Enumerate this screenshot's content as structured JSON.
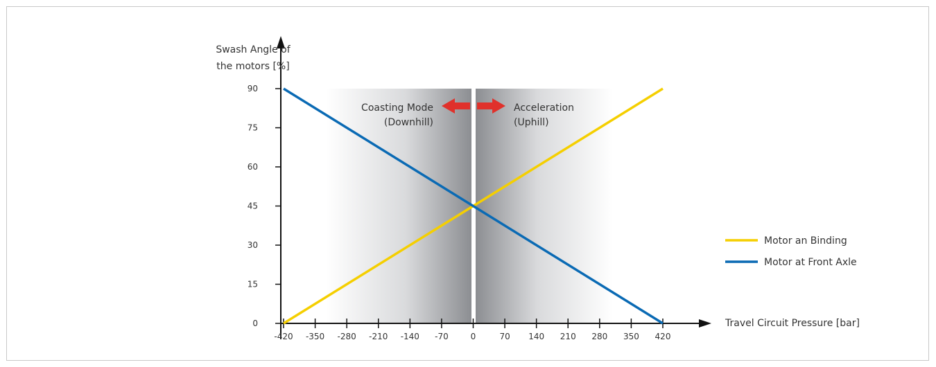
{
  "chart_data": {
    "type": "line",
    "ylabel_line1": "Swash Angle of",
    "ylabel_line2": "the motors [%]",
    "xlabel": "Travel Circuit Pressure [bar]",
    "x_ticks": [
      "-420",
      "-350",
      "-280",
      "-210",
      "-140",
      "-70",
      "0",
      "70",
      "140",
      "210",
      "280",
      "350",
      "420"
    ],
    "y_ticks": [
      "0",
      "15",
      "30",
      "45",
      "60",
      "75",
      "90"
    ],
    "xlim": [
      -420,
      420
    ],
    "ylim": [
      0,
      90
    ],
    "series": [
      {
        "name": "Motor an Binding",
        "color": "#f5cf00",
        "x": [
          -420,
          420
        ],
        "y": [
          0,
          90
        ]
      },
      {
        "name": "Motor at Front Axle",
        "color": "#0a6ab4",
        "x": [
          -420,
          420
        ],
        "y": [
          90,
          0
        ]
      }
    ],
    "annotations": {
      "left_line1": "Coasting Mode",
      "left_line2": "(Downhill)",
      "right_line1": "Acceleration",
      "right_line2": "(Uphill)",
      "arrow_color": "#e0312b"
    },
    "legend_position": "right",
    "grid": false
  }
}
